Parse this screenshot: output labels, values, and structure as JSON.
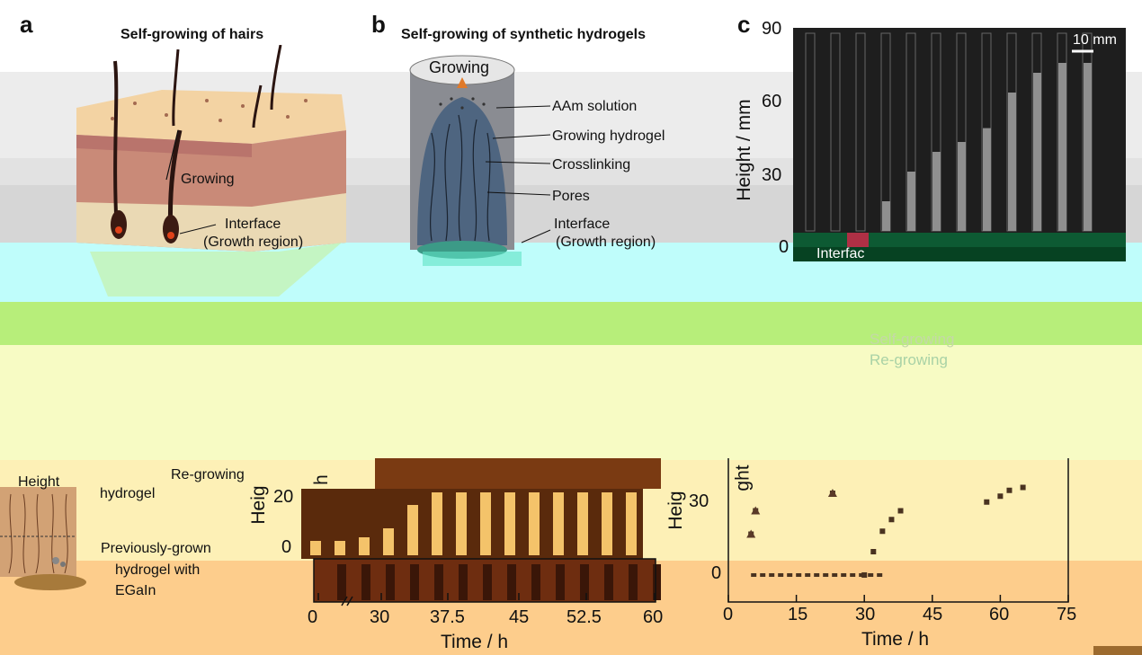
{
  "panels": {
    "a": {
      "letter": "a",
      "title": "Self-growing of hairs",
      "labels": {
        "growing": "Growing",
        "interface_1": "Interface",
        "interface_2": "(Growth region)"
      }
    },
    "b": {
      "letter": "b",
      "title": "Self-growing of synthetic hydrogels",
      "labels": {
        "top": "Growing",
        "aam": "AAm solution",
        "growing_hydrogel": "Growing hydrogel",
        "crosslinking": "Crosslinking",
        "pores": "Pores",
        "interface_1": "Interface",
        "interface_2": "(Growth region)"
      }
    },
    "c": {
      "letter": "c",
      "y_title": "Height / mm",
      "y_ticks": [
        "90",
        "60",
        "30",
        "0"
      ],
      "scale_bar": "10 mm",
      "partial_label": "Interfac"
    }
  },
  "legend": {
    "self": "Self-growing",
    "re": "Re-growing"
  },
  "bottom_left": {
    "height": "Height",
    "re_growing_1": "Re-growing",
    "re_growing_2": "hydrogel",
    "prev_1": "Previously-grown",
    "prev_2": "hydrogel with",
    "prev_3": "EGaIn"
  },
  "chart_mid": {
    "y_title": "Heig",
    "y_title_extra": "h",
    "y_ticks": [
      "20",
      "0"
    ],
    "x_ticks": [
      "0",
      "30",
      "37.5",
      "45",
      "52.5",
      "60"
    ],
    "x_title": "Time / h"
  },
  "chart_right": {
    "y_title": "Heig",
    "y_title_extra": "ght",
    "y_ticks": [
      "30",
      "0"
    ],
    "x_ticks": [
      "0",
      "15",
      "30",
      "45",
      "60",
      "75"
    ],
    "x_title": "Time / h"
  },
  "chart_data": {
    "type": "scatter",
    "xlabel": "Time / h",
    "xlim": [
      0,
      75
    ],
    "series": [
      {
        "name": "Self-growing",
        "x": [
          5,
          6,
          23,
          30,
          32,
          34,
          36,
          38,
          57,
          60,
          62,
          65
        ],
        "y": [
          14,
          22,
          28,
          0,
          8,
          15,
          19,
          22,
          25,
          27,
          29,
          30
        ]
      },
      {
        "name": "Re-growing",
        "x": [
          5,
          6,
          23
        ],
        "y": [
          14,
          22,
          28
        ]
      }
    ]
  }
}
